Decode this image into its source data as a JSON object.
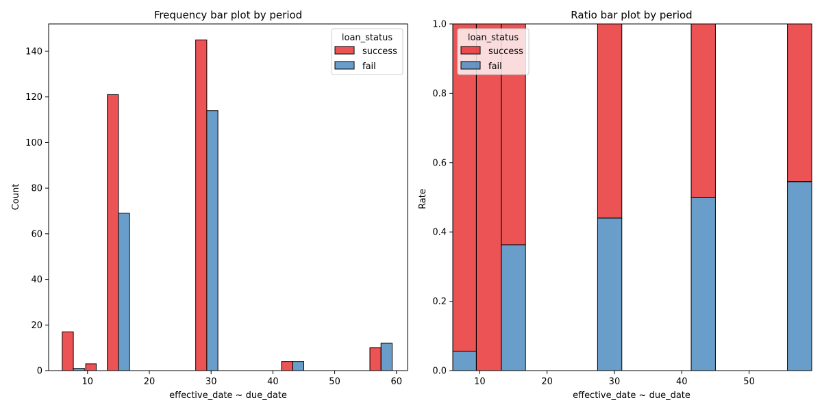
{
  "chart_data": [
    {
      "type": "bar",
      "title": "Frequency bar plot by period",
      "xlabel": "effective_date ~ due_date",
      "ylabel": "Count",
      "xlim": [
        3.7,
        61.8
      ],
      "ylim": [
        0,
        152
      ],
      "xticks": [
        10,
        20,
        30,
        40,
        50,
        60
      ],
      "yticks": [
        0,
        20,
        40,
        60,
        80,
        100,
        120,
        140
      ],
      "legend": {
        "title": "loan_status",
        "position": "top-right"
      },
      "grid": false,
      "series": [
        {
          "name": "success",
          "color": "#e41a1c",
          "bars": [
            {
              "x0": 5.9,
              "x1": 7.7,
              "value": 17
            },
            {
              "x0": 9.7,
              "x1": 11.4,
              "value": 3
            },
            {
              "x0": 13.2,
              "x1": 15.0,
              "value": 121
            },
            {
              "x0": 27.5,
              "x1": 29.3,
              "value": 145
            },
            {
              "x0": 41.4,
              "x1": 43.2,
              "value": 4
            },
            {
              "x0": 55.7,
              "x1": 57.5,
              "value": 10
            }
          ]
        },
        {
          "name": "fail",
          "color": "#377eb8",
          "bars": [
            {
              "x0": 7.7,
              "x1": 9.5,
              "value": 1
            },
            {
              "x0": 15.0,
              "x1": 16.8,
              "value": 69
            },
            {
              "x0": 29.3,
              "x1": 31.1,
              "value": 114
            },
            {
              "x0": 43.2,
              "x1": 45.0,
              "value": 4
            },
            {
              "x0": 57.5,
              "x1": 59.3,
              "value": 12
            }
          ]
        }
      ]
    },
    {
      "type": "bar",
      "stacked": true,
      "title": "Ratio bar plot by period",
      "xlabel": "effective_date ~ due_date",
      "ylabel": "Rate",
      "xlim": [
        6.0,
        59.3
      ],
      "ylim": [
        0,
        1
      ],
      "xticks": [
        10,
        20,
        30,
        40,
        50
      ],
      "yticks": [
        "0.0",
        "0.2",
        "0.4",
        "0.6",
        "0.8",
        "1.0"
      ],
      "legend": {
        "title": "loan_status",
        "position": "top-left"
      },
      "grid": false,
      "series": [
        {
          "name": "success",
          "color": "#e41a1c"
        },
        {
          "name": "fail",
          "color": "#377eb8"
        }
      ],
      "bars": [
        {
          "x0": 6.0,
          "x1": 9.5,
          "fail": 0.056,
          "success": 0.944
        },
        {
          "x0": 9.5,
          "x1": 13.2,
          "fail": 0.0,
          "success": 1.0
        },
        {
          "x0": 13.2,
          "x1": 16.8,
          "fail": 0.363,
          "success": 0.637
        },
        {
          "x0": 27.5,
          "x1": 31.1,
          "fail": 0.44,
          "success": 0.56
        },
        {
          "x0": 41.4,
          "x1": 45.0,
          "fail": 0.5,
          "success": 0.5
        },
        {
          "x0": 55.7,
          "x1": 59.3,
          "fail": 0.545,
          "success": 0.455
        }
      ]
    }
  ]
}
